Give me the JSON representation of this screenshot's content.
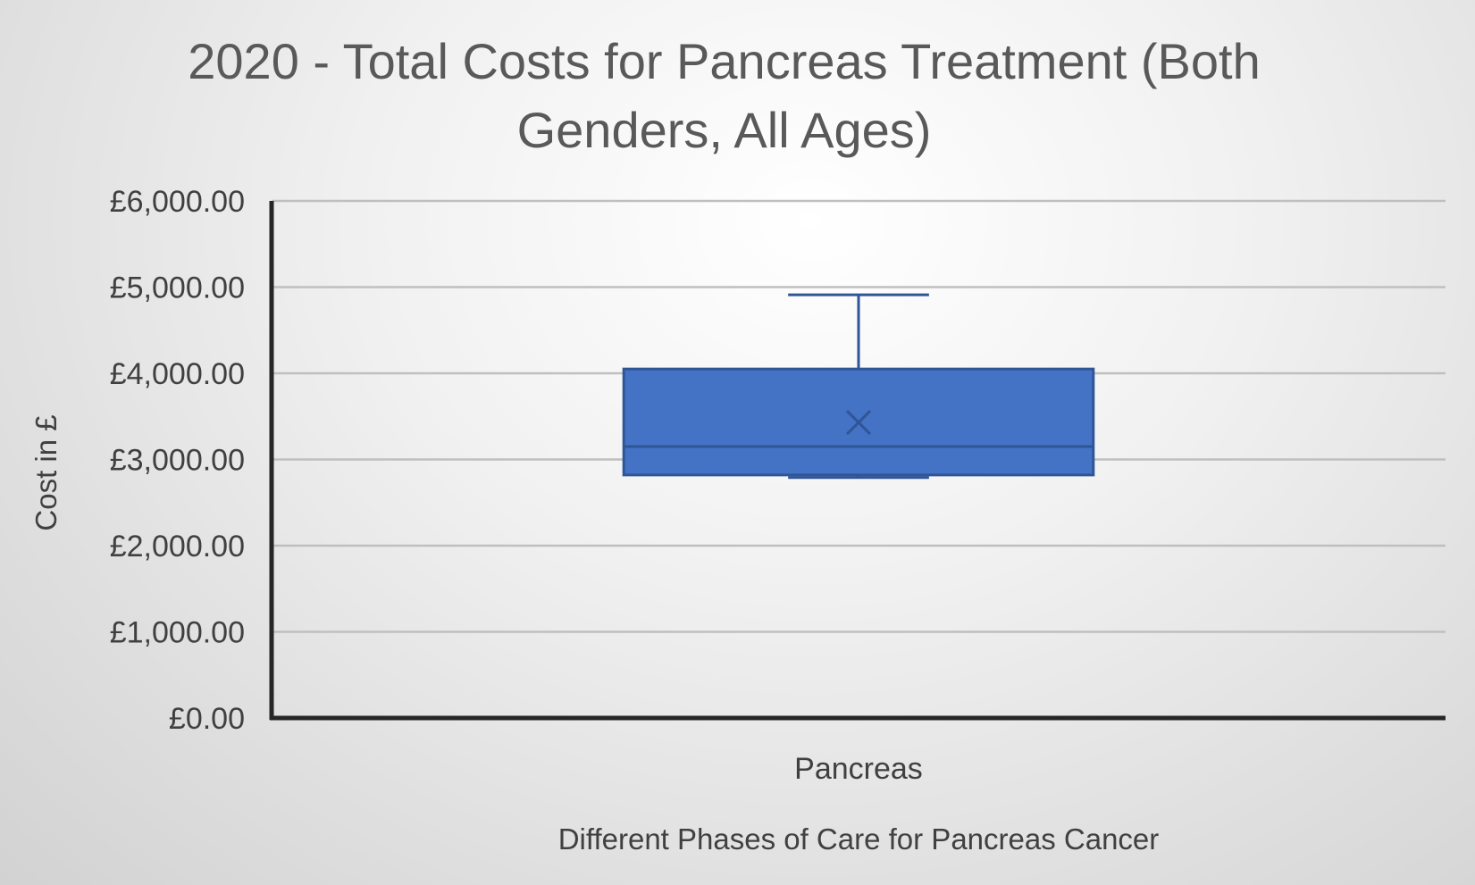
{
  "chart_data": {
    "type": "box",
    "title": "2020 - Total Costs for Pancreas Treatment (Both Genders, All Ages)",
    "title_lines": [
      "2020 - Total Costs for Pancreas Treatment (Both",
      "Genders, All Ages)"
    ],
    "xlabel": "Different Phases of Care for Pancreas Cancer",
    "ylabel": "Cost in £",
    "categories": [
      "Pancreas"
    ],
    "ylim": [
      0,
      6000
    ],
    "yticks": [
      0,
      1000,
      2000,
      3000,
      4000,
      5000,
      6000
    ],
    "ytick_labels": [
      "£0.00",
      "£1,000.00",
      "£2,000.00",
      "£3,000.00",
      "£4,000.00",
      "£5,000.00",
      "£6,000.00"
    ],
    "grid": true,
    "legend": "none",
    "series": [
      {
        "category": "Pancreas",
        "min": 2790,
        "q1": 2820,
        "median": 3150,
        "q3": 4050,
        "max": 4910,
        "mean": 3430
      }
    ],
    "colors": {
      "box_fill": "#4472C4",
      "box_stroke": "#2F5597",
      "gridline": "#BFBFBF",
      "axis": "#262626",
      "text": "#404040",
      "title": "#595959"
    }
  }
}
